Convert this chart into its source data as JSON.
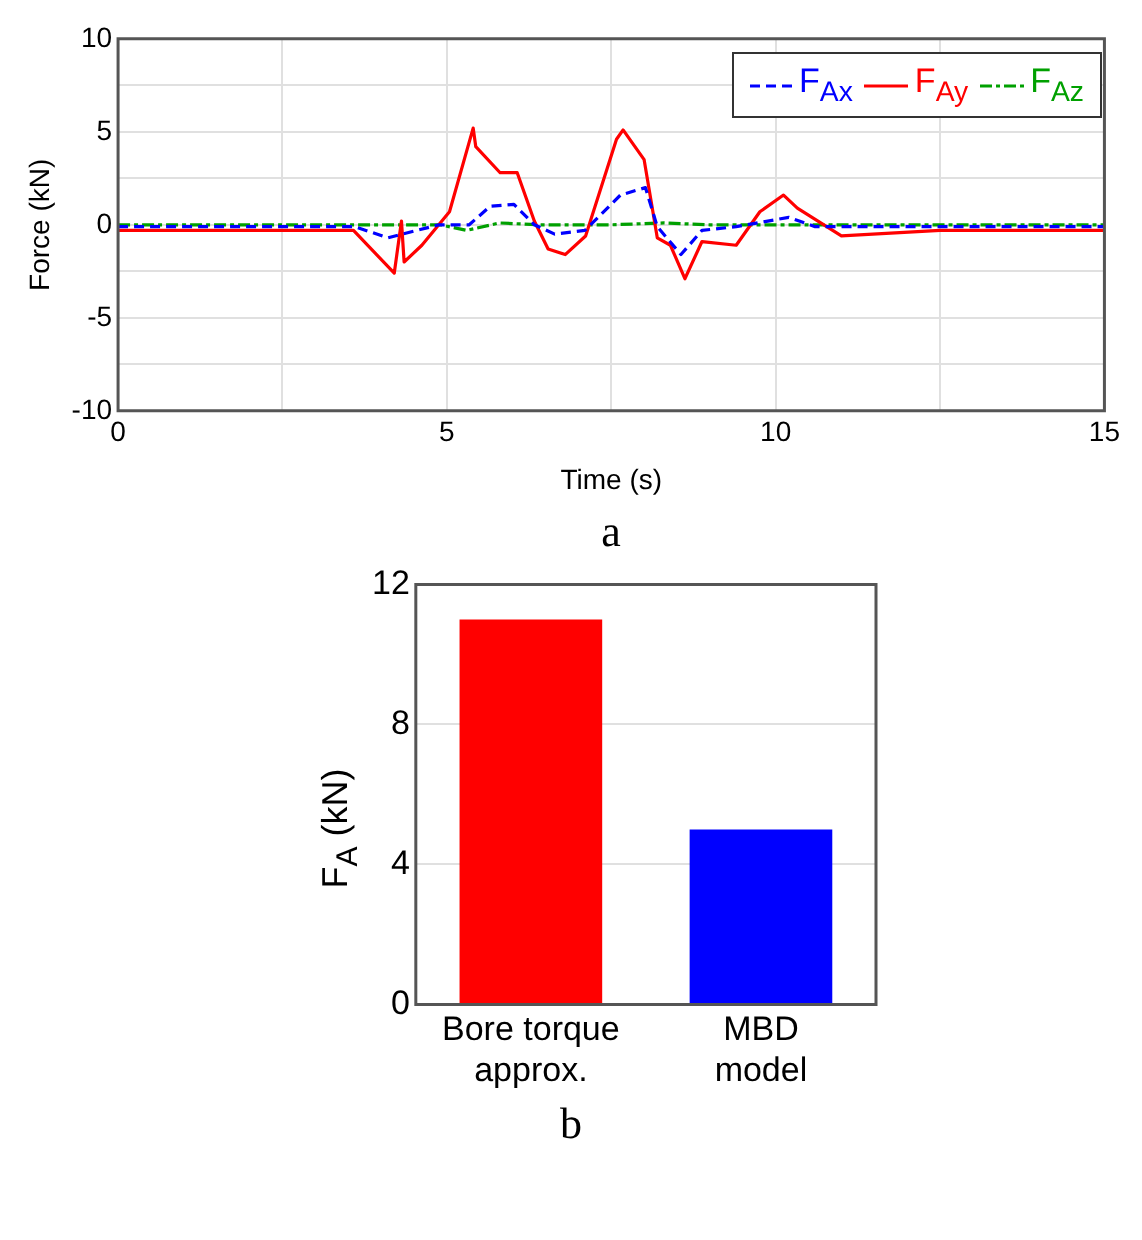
{
  "chart_data": [
    {
      "type": "line",
      "xlabel": "Time (s)",
      "ylabel": "Force (kN)",
      "annotations": [
        "a"
      ],
      "xlim": [
        0,
        15
      ],
      "ylim": [
        -10,
        10
      ],
      "xticks": [
        0,
        {
          "value": 2.5,
          "label": null
        },
        5,
        {
          "value": 7.5,
          "label": null
        },
        10,
        {
          "value": 12.5,
          "label": null
        },
        15
      ],
      "yticks": [
        -10,
        {
          "value": -7.5,
          "label": null
        },
        -5,
        {
          "value": -2.5,
          "label": null
        },
        0,
        {
          "value": 2.5,
          "label": null
        },
        5,
        {
          "value": 7.5,
          "label": null
        },
        10
      ],
      "grid": true,
      "legend": "top right",
      "marker": "none",
      "series": [
        {
          "name": "F$_{Ax}$",
          "color": "#0000ff",
          "line_style": "dashed",
          "x": [
            0,
            3.6,
            4.1,
            4.88,
            5.34,
            5.66,
            6.02,
            6.33,
            6.64,
            7.1,
            7.64,
            8.02,
            8.2,
            8.56,
            8.88,
            9.4,
            10.2,
            10.6,
            15
          ],
          "values": [
            -0.1,
            -0.1,
            -0.7,
            0,
            0,
            1.0,
            1.1,
            0,
            -0.5,
            -0.3,
            1.6,
            2.0,
            -0.1,
            -1.6,
            -0.3,
            -0.1,
            0.4,
            -0.1,
            -0.1
          ]
        },
        {
          "name": "F$_{Ay}$",
          "color": "#ff0000",
          "line_style": "solid",
          "x": [
            0,
            3.58,
            4.2,
            4.31,
            4.35,
            4.62,
            5.04,
            5.4,
            5.44,
            5.81,
            6.07,
            6.33,
            6.54,
            6.8,
            7.11,
            7.58,
            7.68,
            8.0,
            8.2,
            8.4,
            8.62,
            8.88,
            9.4,
            9.76,
            10.12,
            10.33,
            11.0,
            12.5,
            15
          ],
          "values": [
            -0.3,
            -0.3,
            -2.6,
            0.2,
            -2.0,
            -1.1,
            0.7,
            5.2,
            4.2,
            2.8,
            2.8,
            0.2,
            -1.3,
            -1.6,
            -0.6,
            4.6,
            5.1,
            3.5,
            -0.7,
            -1.1,
            -2.9,
            -0.9,
            -1.1,
            0.7,
            1.6,
            0.9,
            -0.6,
            -0.3,
            -0.3
          ]
        },
        {
          "name": "F$_{Az}$",
          "color": "#00a000",
          "line_style": "dotted",
          "x": [
            0,
            4.9,
            5.3,
            5.8,
            6.4,
            7.5,
            8.3,
            9.0,
            15
          ],
          "values": [
            0,
            0,
            -0.3,
            0.1,
            0,
            0,
            0.1,
            0,
            0
          ]
        }
      ]
    },
    {
      "type": "bar",
      "ylabel": "F$_{A}$ (kN)",
      "annotations": [
        "b"
      ],
      "categories": [
        "Bore torque approx.",
        "MBD model"
      ],
      "values": [
        11,
        5
      ],
      "colors": [
        "#ff0000",
        "#0000ff"
      ],
      "ylim": [
        0,
        12
      ],
      "yticks": [
        0,
        4,
        8,
        12
      ],
      "grid": "y",
      "legend": false
    }
  ]
}
